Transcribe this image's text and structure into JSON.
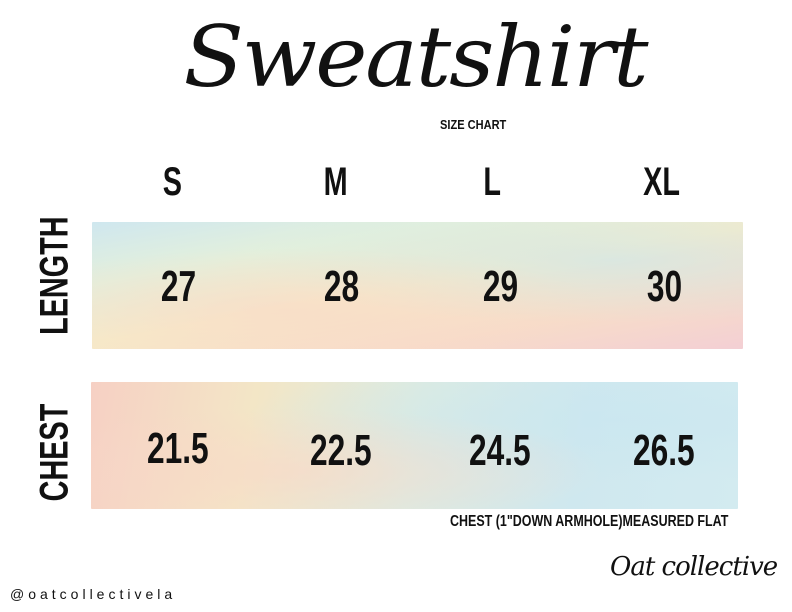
{
  "title": "Sweatshirt",
  "subtitle": "SIZE CHART",
  "sizes": [
    "S",
    "M",
    "L",
    "XL"
  ],
  "rows": [
    {
      "label": "LENGTH",
      "values": [
        "27",
        "28",
        "29",
        "30"
      ]
    },
    {
      "label": "CHEST",
      "values": [
        "21.5",
        "22.5",
        "24.5",
        "26.5"
      ]
    }
  ],
  "note": "CHEST (1\"DOWN ARMHOLE)MEASURED FLAT",
  "brand": "Oat collective",
  "handle": "@oatcollectivela"
}
